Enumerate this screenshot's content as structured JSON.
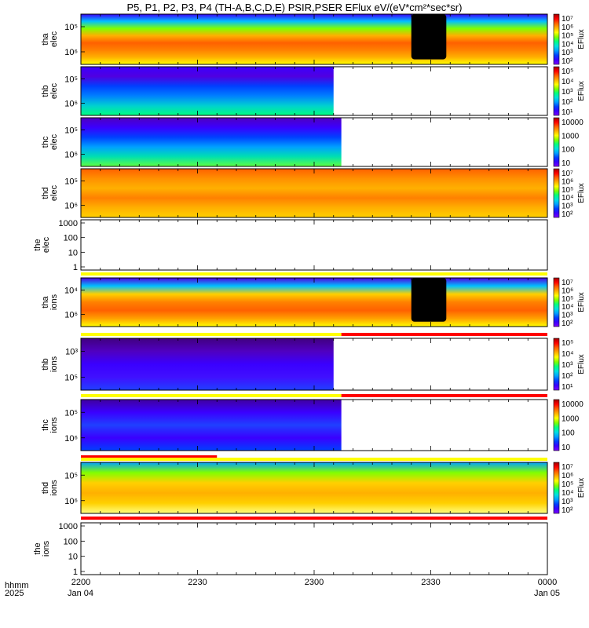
{
  "title": "P5, P1, P2, P3, P4 (TH-A,B,C,D,E) PSIR,PSER EFlux eV/(eV*cm²*sec*sr)",
  "time_axis": {
    "ticks": [
      "2200",
      "2230",
      "2300",
      "2330",
      "0000"
    ],
    "dates": [
      "Jan 04",
      "Jan 05"
    ],
    "row_labels": [
      "hhmm",
      "2025"
    ]
  },
  "colors": {
    "jet": [
      "#7f00ff",
      "#3a00ff",
      "#0040ff",
      "#00a0ff",
      "#00e0e0",
      "#00ff80",
      "#80ff00",
      "#ffff00",
      "#ffb000",
      "#ff6000",
      "#ff0000",
      "#a00000"
    ],
    "flag_yellow": "#ffff00",
    "flag_red": "#ff0000",
    "gap": "#000000"
  },
  "chart_data": {
    "type": "heatmap",
    "x_range": [
      "22:00",
      "00:00"
    ],
    "panels": [
      {
        "id": "tha_elec",
        "ylabel_top": "tha",
        "ylabel_bot": "elec",
        "yticks": [
          "10⁵",
          "10⁶"
        ],
        "cbar_ticks": [
          "10⁷",
          "10⁶",
          "10⁵",
          "10⁴",
          "10³",
          "10²"
        ],
        "cbar_unit": "EFlux",
        "data_end": "00:00",
        "gap": [
          "23:25",
          "23:34"
        ]
      },
      {
        "id": "thb_elec",
        "ylabel_top": "thb",
        "ylabel_bot": "elec",
        "yticks": [
          "10⁵",
          "10⁶"
        ],
        "cbar_ticks": [
          "10⁵",
          "10⁴",
          "10³",
          "10²",
          "10¹"
        ],
        "cbar_unit": "EFlux",
        "data_end": "23:05"
      },
      {
        "id": "thc_elec",
        "ylabel_top": "thc",
        "ylabel_bot": "elec",
        "yticks": [
          "10⁵",
          "10⁶"
        ],
        "cbar_ticks": [
          "10000",
          "1000",
          "100",
          "10"
        ],
        "cbar_unit": "",
        "data_end": "23:07"
      },
      {
        "id": "thd_elec",
        "ylabel_top": "thd",
        "ylabel_bot": "elec",
        "yticks": [
          "10⁵",
          "10⁶"
        ],
        "cbar_ticks": [
          "10⁷",
          "10⁶",
          "10⁵",
          "10⁴",
          "10³",
          "10²"
        ],
        "cbar_unit": "EFlux",
        "data_end": "00:00"
      },
      {
        "id": "the_elec",
        "ylabel_top": "the",
        "ylabel_bot": "elec",
        "yticks": [
          "1000",
          "100",
          "10",
          "1"
        ],
        "empty": true
      },
      {
        "id": "tha_ions",
        "ylabel_top": "tha",
        "ylabel_bot": "ions",
        "yticks": [
          "10⁴",
          "10⁶"
        ],
        "cbar_ticks": [
          "10⁷",
          "10⁶",
          "10⁵",
          "10⁴",
          "10³",
          "10²"
        ],
        "cbar_unit": "EFlux",
        "data_end": "00:00",
        "gap": [
          "23:25",
          "23:34"
        ]
      },
      {
        "id": "thb_ions",
        "ylabel_top": "thb",
        "ylabel_bot": "ions",
        "yticks": [
          "10³",
          "10⁵"
        ],
        "cbar_ticks": [
          "10⁵",
          "10⁴",
          "10³",
          "10²",
          "10¹"
        ],
        "cbar_unit": "EFlux",
        "data_end": "23:05"
      },
      {
        "id": "thc_ions",
        "ylabel_top": "thc",
        "ylabel_bot": "ions",
        "yticks": [
          "10⁵",
          "10⁶"
        ],
        "cbar_ticks": [
          "10000",
          "1000",
          "100",
          "10"
        ],
        "cbar_unit": "",
        "data_end": "23:07"
      },
      {
        "id": "thd_ions",
        "ylabel_top": "thd",
        "ylabel_bot": "ions",
        "yticks": [
          "10⁵",
          "10⁶"
        ],
        "cbar_ticks": [
          "10⁷",
          "10⁶",
          "10⁵",
          "10⁴",
          "10³",
          "10²"
        ],
        "cbar_unit": "EFlux",
        "data_end": "00:00"
      },
      {
        "id": "the_ions",
        "ylabel_top": "the",
        "ylabel_bot": "ions",
        "yticks": [
          "1000",
          "100",
          "10",
          "1"
        ],
        "empty": true
      }
    ]
  }
}
